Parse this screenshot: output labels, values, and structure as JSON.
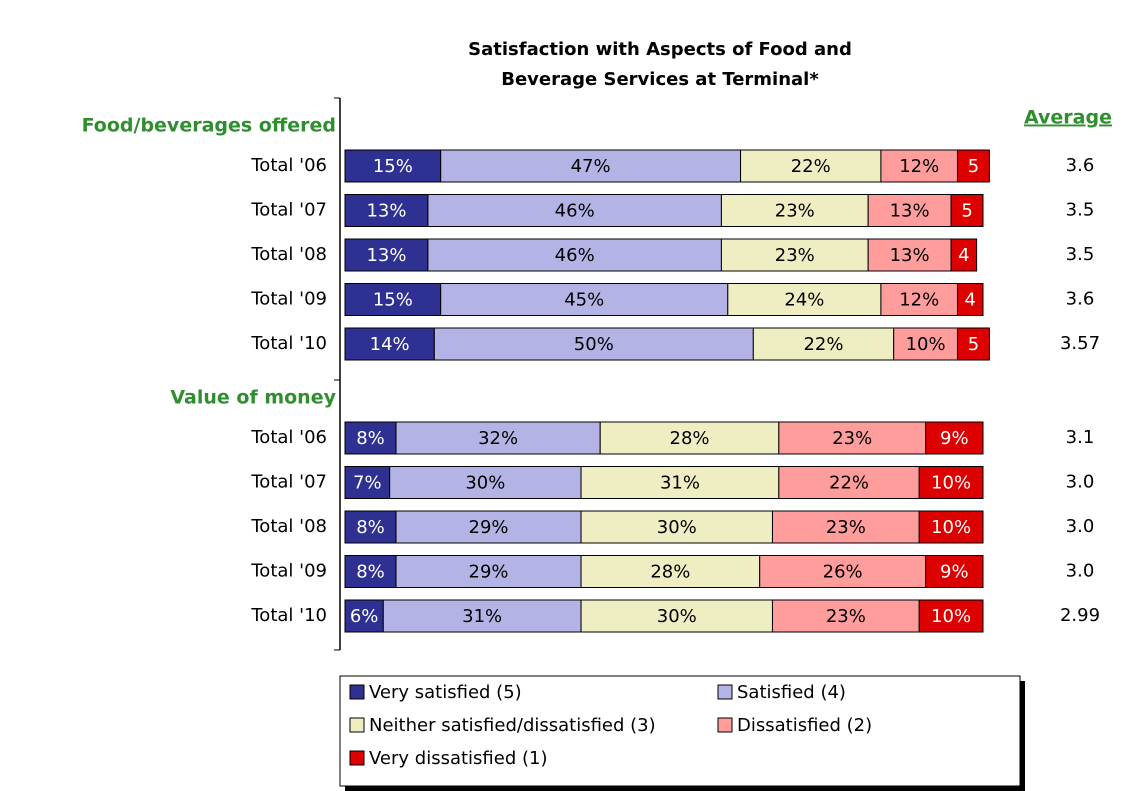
{
  "chart_data": {
    "type": "stacked-bar-horizontal",
    "title": "Satisfaction with Aspects of Food and Beverage Services at Terminal*",
    "xlim": [
      0,
      100
    ],
    "groups": [
      {
        "label": "Food/beverages offered",
        "categories": [
          "Total '06",
          "Total '07",
          "Total '08",
          "Total '09",
          "Total '10"
        ]
      },
      {
        "label": "Value of money",
        "categories": [
          "Total '06",
          "Total '07",
          "Total '08",
          "Total '09",
          "Total '10"
        ]
      }
    ],
    "series": [
      {
        "name": "Very satisfied (5)",
        "color": "#2e3192",
        "values": [
          15,
          13,
          13,
          15,
          14,
          8,
          7,
          8,
          8,
          6
        ],
        "value_labels": [
          "15%",
          "13%",
          "13%",
          "15%",
          "14%",
          "8%",
          "7%",
          "8%",
          "8%",
          "6%"
        ]
      },
      {
        "name": "Satisfied (4)",
        "color": "#b3b3e6",
        "values": [
          47,
          46,
          46,
          45,
          50,
          32,
          30,
          29,
          29,
          31
        ],
        "value_labels": [
          "47%",
          "46%",
          "46%",
          "45%",
          "50%",
          "32%",
          "30%",
          "29%",
          "29%",
          "31%"
        ]
      },
      {
        "name": "Neither satisfied/dissatisfied (3)",
        "color": "#eeeec2",
        "values": [
          22,
          23,
          23,
          24,
          22,
          28,
          31,
          30,
          28,
          30
        ],
        "value_labels": [
          "22%",
          "23%",
          "23%",
          "24%",
          "22%",
          "28%",
          "31%",
          "30%",
          "28%",
          "30%"
        ]
      },
      {
        "name": "Dissatisfied (2)",
        "color": "#ff9c9c",
        "values": [
          12,
          13,
          13,
          12,
          10,
          23,
          22,
          23,
          26,
          23
        ],
        "value_labels": [
          "12%",
          "13%",
          "13%",
          "12%",
          "10%",
          "23%",
          "22%",
          "23%",
          "26%",
          "23%"
        ]
      },
      {
        "name": "Very dissatisfied (1)",
        "color": "#dd0000",
        "values": [
          5,
          5,
          4,
          4,
          5,
          9,
          10,
          10,
          9,
          10
        ],
        "value_labels": [
          "5",
          "5",
          "4",
          "4",
          "5",
          "9%",
          "10%",
          "10%",
          "9%",
          "10%"
        ]
      }
    ],
    "averages": {
      "title": "Average",
      "values": [
        3.6,
        3.5,
        3.5,
        3.6,
        3.57,
        3.1,
        3.0,
        3.0,
        3.0,
        2.99
      ],
      "value_labels": [
        "3.6",
        "3.5",
        "3.5",
        "3.6",
        "3.57",
        "3.1",
        "3.0",
        "3.0",
        "3.0",
        "2.99"
      ]
    }
  }
}
